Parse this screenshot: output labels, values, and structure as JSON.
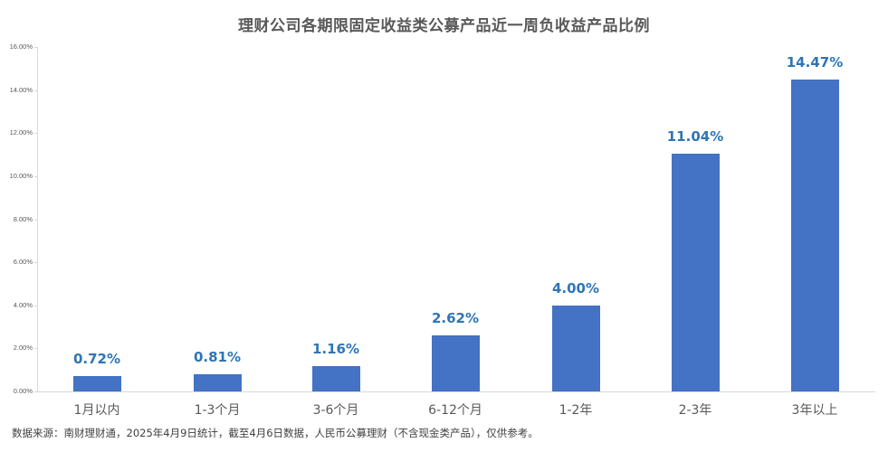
{
  "title": "理财公司各期限固定收益类公募产品近一周负收益产品比例",
  "source_note": "数据来源：南财理财通，2025年4月9日统计，截至4月6日数据，人民币公募理财（不含现金类产品），仅供参考。",
  "colors": {
    "bar": "#4472c4",
    "label": "#2e75b6",
    "axis": "#d9d9d9",
    "text": "#595959"
  },
  "chart_data": {
    "type": "bar",
    "title": "理财公司各期限固定收益类公募产品近一周负收益产品比例",
    "xlabel": "",
    "ylabel": "",
    "categories": [
      "1月以内",
      "1-3个月",
      "3-6个月",
      "6-12个月",
      "1-2年",
      "2-3年",
      "3年以上"
    ],
    "values": [
      0.72,
      0.81,
      1.16,
      2.62,
      4.0,
      11.04,
      14.47
    ],
    "value_labels": [
      "0.72%",
      "0.81%",
      "1.16%",
      "2.62%",
      "4.00%",
      "11.04%",
      "14.47%"
    ],
    "unit": "%",
    "ylim": [
      0,
      16
    ],
    "yticks": [
      "0.00%",
      "2.00%",
      "4.00%",
      "6.00%",
      "8.00%",
      "10.00%",
      "12.00%",
      "14.00%",
      "16.00%"
    ],
    "grid": false,
    "legend": null
  }
}
